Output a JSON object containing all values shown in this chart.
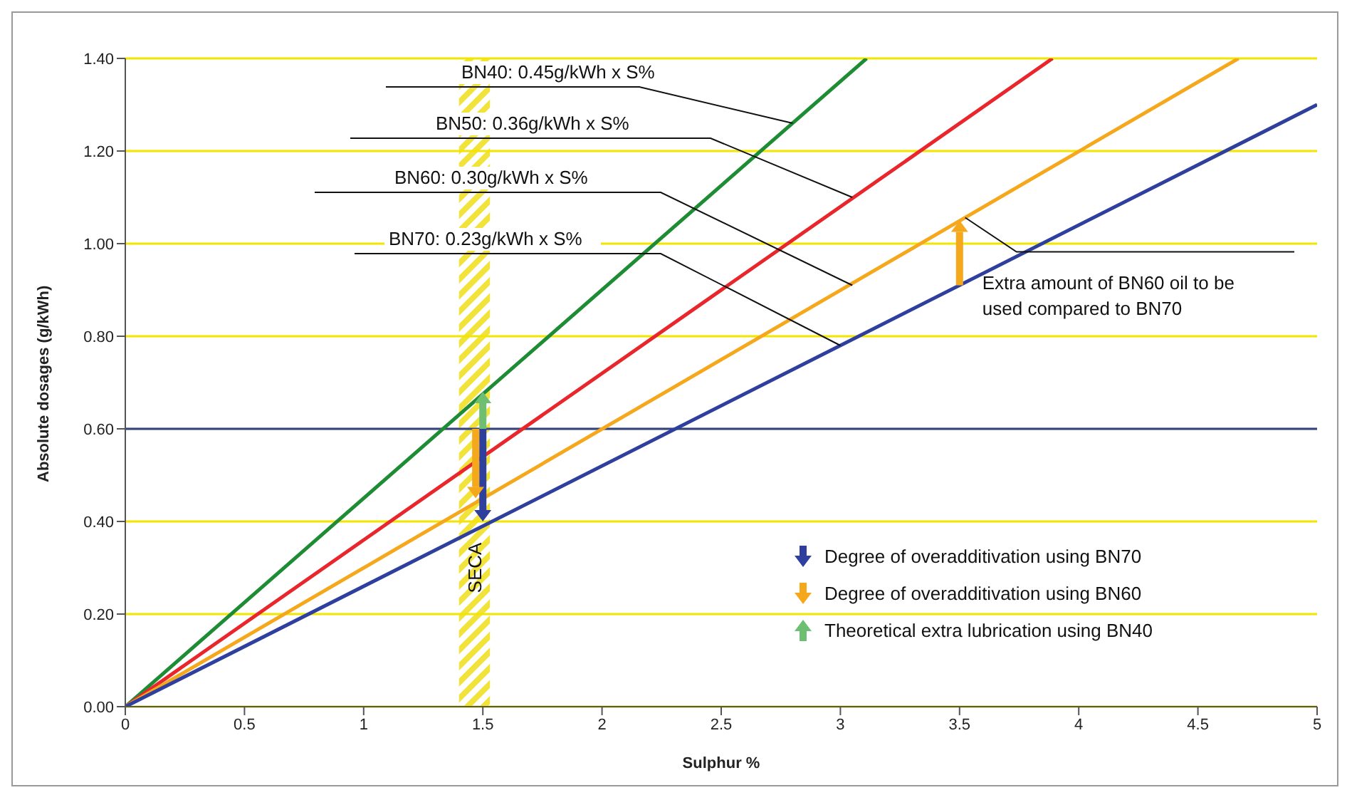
{
  "chart_data": {
    "type": "line",
    "xlabel": "Sulphur %",
    "ylabel": "Absolute dosages (g/kWh)",
    "series": [
      {
        "x": [
          0,
          3.11
        ],
        "values": [
          0,
          1.4
        ],
        "color": "#1e8c35"
      },
      {
        "x": [
          0,
          3.89
        ],
        "values": [
          0,
          1.4
        ],
        "color": "#e8262b"
      },
      {
        "x": [
          0,
          4.67
        ],
        "values": [
          0,
          1.4
        ],
        "color": "#f5a81c"
      },
      {
        "x": [
          0,
          5
        ],
        "values": [
          0,
          1.3
        ],
        "color": "#2e3f9e"
      }
    ],
    "xlim": [
      0,
      5
    ],
    "xticks": [
      0,
      0.5,
      1,
      1.5,
      2,
      2.5,
      3,
      3.5,
      4,
      4.5,
      5
    ],
    "ylim": [
      0,
      1.4
    ],
    "yticks": [
      {
        "value": 0,
        "label": "0.00"
      },
      {
        "value": 0.2,
        "label": "0.20"
      },
      {
        "value": 0.4,
        "label": "0.40"
      },
      {
        "value": 0.6,
        "label": "0.60"
      },
      {
        "value": 0.8,
        "label": "0.80"
      },
      {
        "value": 1,
        "label": "1.00"
      },
      {
        "value": 1.2,
        "label": "1.20"
      },
      {
        "value": 1.4,
        "label": "1.40"
      }
    ],
    "grid": "y",
    "ref_lines": [
      {
        "axis": "y",
        "value": 0.6,
        "color": "#2e3f9e"
      }
    ],
    "bands": [
      {
        "axis": "x",
        "from": 1.4,
        "to": 1.53,
        "label": "SECA",
        "color": "#f2e33a"
      }
    ],
    "annotations": [
      {
        "text": "BN40: 0.45g/kWh x S%",
        "x": 2.8,
        "y": 1.26
      },
      {
        "text": "BN50: 0.36g/kWh x S%",
        "x": 3.05,
        "y": 1.1
      },
      {
        "text": "BN60: 0.30g/kWh x S%",
        "x": 3.05,
        "y": 0.91
      },
      {
        "text": "BN70: 0.23g/kWh x S%",
        "x": 3,
        "y": 0.78
      },
      {
        "text": "Extra amount of BN60 oil to be used compared to BN70",
        "x": 3.5,
        "y": 1.05
      },
      "Degree of overadditivation using BN70",
      "Degree of overadditivation using BN60",
      "Theoretical extra lubrication using BN40"
    ]
  }
}
